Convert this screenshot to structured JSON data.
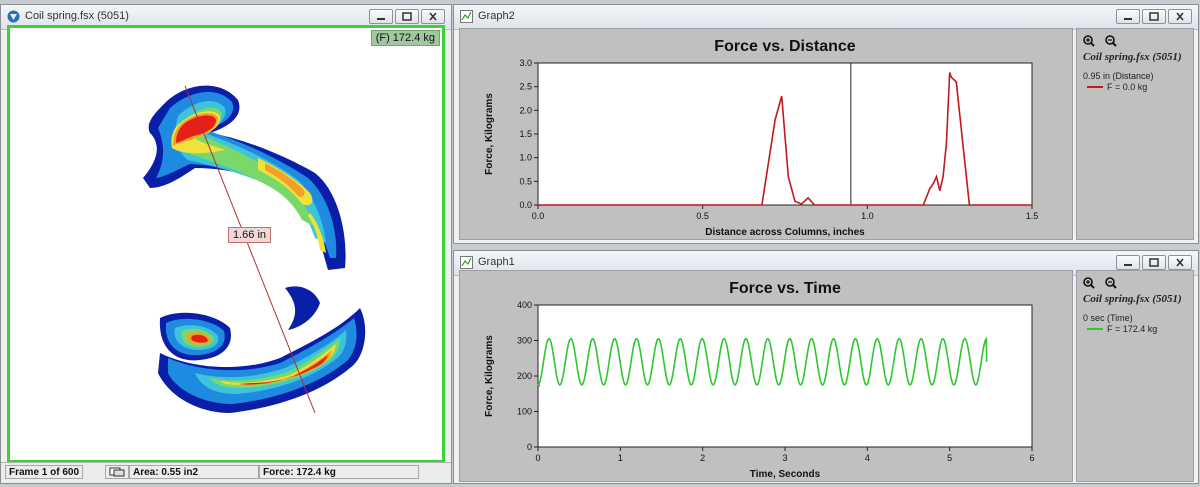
{
  "left_window": {
    "title": "Coil spring.fsx (5051)",
    "force_label": "(F) 172.4 kg",
    "distance_label": "1.66 in",
    "status": {
      "frame": "Frame 1 of 600",
      "area": "Area: 0.55 in2",
      "force": "Force: 172.4 kg"
    }
  },
  "graph2": {
    "title": "Graph2",
    "legend": {
      "file": "Coil spring.fsx (5051)",
      "cursor": "0.95 in (Distance)",
      "entry": "F = 0.0 kg",
      "color": "#c0191e"
    }
  },
  "graph1": {
    "title": "Graph1",
    "legend": {
      "file": "Coil spring.fsx (5051)",
      "cursor": "0 sec (Time)",
      "entry": "F = 172.4 kg",
      "color": "#2ec82e"
    }
  },
  "chart_data": [
    {
      "type": "line",
      "title": "Force vs. Distance",
      "xlabel": "Distance across Columns, inches",
      "ylabel": "Force, Kilograms",
      "xlim": [
        0,
        1.5
      ],
      "ylim": [
        0,
        3.0
      ],
      "xticks": [
        "0.0",
        "0.5",
        "1.0",
        "1.5"
      ],
      "yticks": [
        "0.0",
        "0.5",
        "1.0",
        "1.5",
        "2.0",
        "2.5",
        "3.0"
      ],
      "cursor_x": 0.95,
      "series": [
        {
          "color": "#c0191e",
          "x": [
            0.0,
            0.65,
            0.68,
            0.7,
            0.72,
            0.74,
            0.76,
            0.78,
            0.8,
            0.82,
            0.84,
            0.86,
            1.0,
            1.17,
            1.19,
            1.2,
            1.21,
            1.22,
            1.23,
            1.24,
            1.25,
            1.255,
            1.27,
            1.29,
            1.31,
            1.5
          ],
          "y": [
            0,
            0,
            0,
            0.9,
            1.8,
            2.3,
            0.6,
            0.08,
            0.02,
            0.15,
            0,
            0,
            0,
            0,
            0.35,
            0.45,
            0.6,
            0.3,
            0.6,
            1.3,
            2.8,
            2.7,
            2.6,
            1.3,
            0,
            0
          ]
        }
      ]
    },
    {
      "type": "line",
      "title": "Force vs. Time",
      "xlabel": "Time, Seconds",
      "ylabel": "Force, Kilograms",
      "xlim": [
        0,
        6
      ],
      "ylim": [
        0,
        400
      ],
      "xticks": [
        "0",
        "1",
        "2",
        "3",
        "4",
        "5",
        "6"
      ],
      "yticks": [
        "0",
        "100",
        "200",
        "300",
        "400"
      ],
      "series": [
        {
          "color": "#2ec82e",
          "x_start": 0,
          "x_end": 5.45,
          "cycles": 20.5,
          "y_min": 175,
          "y_max": 305,
          "y_start": 172.4,
          "y_end": 240
        }
      ]
    }
  ]
}
